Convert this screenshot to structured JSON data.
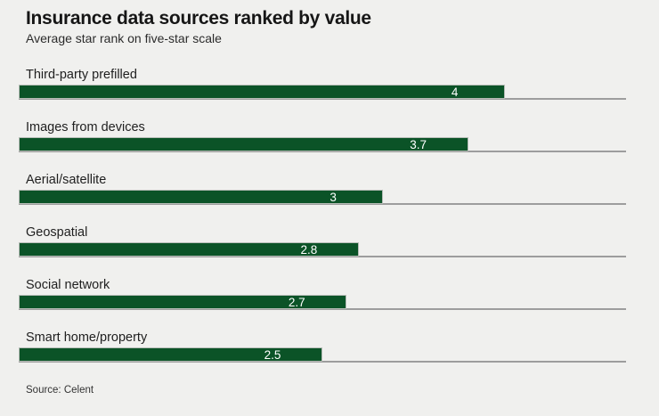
{
  "page": {
    "background_color": "#f0f0ee"
  },
  "chart_data": {
    "type": "bar",
    "orientation": "horizontal",
    "title": "Insurance data sources ranked by value",
    "subtitle": "Average star rank on five-star scale",
    "source": "Source: Celent",
    "categories": [
      "Third-party prefilled",
      "Images from devices",
      "Aerial/satellite",
      "Geospatial",
      "Social network",
      "Smart home/property"
    ],
    "values": [
      4,
      3.7,
      3,
      2.8,
      2.7,
      2.5
    ],
    "value_labels": [
      "4",
      "3.7",
      "3",
      "2.8",
      "2.7",
      "2.5"
    ],
    "xlim": [
      0,
      5
    ],
    "xlabel": "",
    "ylabel": "",
    "grid": false,
    "legend": false,
    "bar_color": "#0b5327",
    "bar_border_color": "#b7bdb7",
    "baseline_color": "#9d9d9d",
    "value_label_color": "#ffffff"
  }
}
